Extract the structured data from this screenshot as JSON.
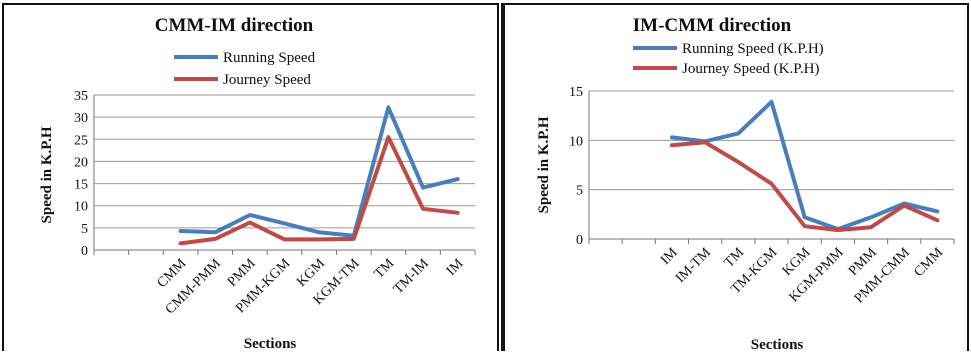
{
  "chart_data": [
    {
      "type": "line",
      "title": "CMM-IM direction",
      "xlabel": "Sections",
      "ylabel": "Speed in K.P.H",
      "ylim": [
        0,
        35
      ],
      "yticks": [
        "0",
        "5",
        "10",
        "15",
        "20",
        "25",
        "30",
        "35"
      ],
      "categories": [
        "",
        "",
        "CMM",
        "CMM-PMM",
        "PMM",
        "PMM-KGM",
        "KGM",
        "KGM-TM",
        "TM",
        "TM-IM",
        "IM"
      ],
      "series": [
        {
          "name": "Running Speed",
          "color": "#4A7EBB",
          "values": [
            null,
            null,
            4.3,
            4.0,
            7.9,
            6.0,
            4.0,
            3.2,
            32.2,
            14.1,
            16.0
          ]
        },
        {
          "name": "Journey Speed",
          "color": "#BE4B48",
          "values": [
            null,
            null,
            1.5,
            2.5,
            6.2,
            2.4,
            2.4,
            2.5,
            25.5,
            9.3,
            8.4
          ]
        }
      ],
      "grid": "horizontal",
      "legend": "top"
    },
    {
      "type": "line",
      "title": "IM-CMM direction",
      "xlabel": "Sections",
      "ylabel": "Speed in K.P.H",
      "ylim": [
        0,
        15
      ],
      "yticks": [
        "0",
        "5",
        "10",
        "15"
      ],
      "categories": [
        "",
        "",
        "IM",
        "IM-TM",
        "TM",
        "TM-KGM",
        "KGM",
        "KGM-PMM",
        "PMM",
        "PMM-CMM",
        "CMM"
      ],
      "series": [
        {
          "name": "Running Speed (K.P.H)",
          "color": "#4A7EBB",
          "values": [
            null,
            null,
            10.3,
            9.9,
            10.7,
            13.9,
            2.2,
            1.0,
            2.2,
            3.6,
            2.8
          ]
        },
        {
          "name": "Journey Speed (K.P.H)",
          "color": "#BE4B48",
          "values": [
            null,
            null,
            9.5,
            9.8,
            7.8,
            5.6,
            1.3,
            0.9,
            1.2,
            3.4,
            1.9
          ]
        }
      ],
      "grid": "horizontal",
      "legend": "top"
    }
  ]
}
